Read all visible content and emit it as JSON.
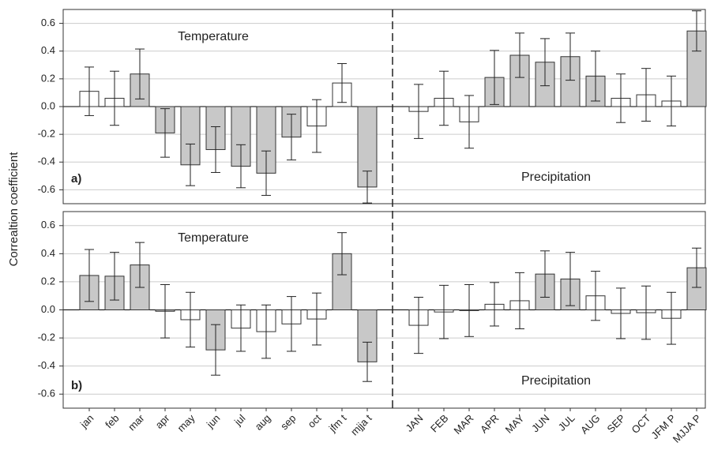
{
  "chart_data": [
    {
      "type": "bar",
      "ylabel": "Correaltion coefficient",
      "panel_label": "a)",
      "annotations": [
        "Temperature",
        "Precipitation"
      ],
      "ylim": [
        -0.7,
        0.7
      ],
      "yticks": [
        -0.6,
        -0.4,
        -0.2,
        {
          "value": 0,
          "label": "0.0"
        },
        0.2,
        0.4,
        0.6
      ],
      "grid": true,
      "series": [
        {
          "values": [
            0.11,
            0.06,
            0.235,
            -0.19,
            -0.42,
            -0.31,
            -0.43,
            -0.48,
            -0.22,
            -0.14,
            0.17,
            -0.58,
            -0.035,
            0.06,
            -0.11,
            0.21,
            0.37,
            0.32,
            0.36,
            0.22,
            0.06,
            0.085,
            0.04,
            0.545
          ],
          "errors": [
            0.175,
            0.195,
            0.18,
            0.175,
            0.15,
            0.165,
            0.155,
            0.16,
            0.165,
            0.19,
            0.14,
            0.115,
            0.195,
            0.195,
            0.19,
            0.195,
            0.16,
            0.17,
            0.17,
            0.18,
            0.175,
            0.19,
            0.18,
            0.145
          ],
          "colors": [
            "#ffffff",
            "#ffffff",
            "#c8c8c8",
            "#c8c8c8",
            "#c8c8c8",
            "#c8c8c8",
            "#c8c8c8",
            "#c8c8c8",
            "#c8c8c8",
            "#ffffff",
            "#ffffff",
            "#c8c8c8",
            "#ffffff",
            "#ffffff",
            "#ffffff",
            "#c8c8c8",
            "#c8c8c8",
            "#c8c8c8",
            "#c8c8c8",
            "#c8c8c8",
            "#ffffff",
            "#ffffff",
            "#ffffff",
            "#c8c8c8"
          ]
        }
      ]
    },
    {
      "type": "bar",
      "panel_label": "b)",
      "annotations": [
        "Temperature",
        "Precipitation"
      ],
      "categories": [
        "jan",
        "feb",
        "mar",
        "apr",
        "may",
        "jun",
        "jul",
        "aug",
        "sep",
        "oct",
        "jfm t",
        "mjja t",
        "JAN",
        "FEB",
        "MAR",
        "APR",
        "MAY",
        "JUN",
        "JUL",
        "AUG",
        "SEP",
        "OCT",
        "JFM P",
        "MJJA P"
      ],
      "ylim": [
        -0.7,
        0.7
      ],
      "yticks": [
        -0.6,
        -0.4,
        -0.2,
        {
          "value": 0,
          "label": "0.0"
        },
        0.2,
        0.4,
        0.6
      ],
      "grid": true,
      "series": [
        {
          "values": [
            0.245,
            0.24,
            0.32,
            -0.01,
            -0.07,
            -0.285,
            -0.13,
            -0.155,
            -0.1,
            -0.065,
            0.4,
            -0.37,
            -0.11,
            -0.015,
            -0.005,
            0.04,
            0.065,
            0.255,
            0.22,
            0.1,
            -0.025,
            -0.02,
            -0.06,
            0.3
          ],
          "errors": [
            0.185,
            0.17,
            0.16,
            0.19,
            0.195,
            0.18,
            0.165,
            0.19,
            0.195,
            0.185,
            0.15,
            0.14,
            0.2,
            0.19,
            0.185,
            0.155,
            0.2,
            0.165,
            0.19,
            0.175,
            0.18,
            0.19,
            0.185,
            0.14
          ],
          "colors": [
            "#c8c8c8",
            "#c8c8c8",
            "#c8c8c8",
            "#c8c8c8",
            "#ffffff",
            "#c8c8c8",
            "#ffffff",
            "#ffffff",
            "#ffffff",
            "#ffffff",
            "#c8c8c8",
            "#c8c8c8",
            "#ffffff",
            "#ffffff",
            "#ffffff",
            "#ffffff",
            "#ffffff",
            "#c8c8c8",
            "#c8c8c8",
            "#ffffff",
            "#ffffff",
            "#ffffff",
            "#ffffff",
            "#c8c8c8"
          ]
        }
      ]
    }
  ]
}
